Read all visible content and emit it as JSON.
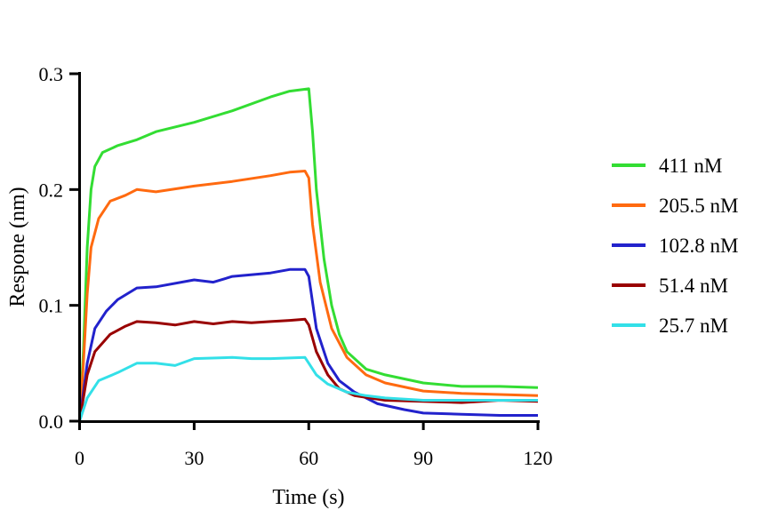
{
  "chart_data": {
    "type": "line",
    "title": "",
    "xlabel": "Time (s)",
    "ylabel": "Respone (nm)",
    "xlim": [
      0,
      120
    ],
    "ylim": [
      0,
      0.3
    ],
    "xticks": [
      "0",
      "30",
      "60",
      "90",
      "120"
    ],
    "yticks": [
      "0.0",
      "0.1",
      "0.2",
      "0.3"
    ],
    "grid": false,
    "legend_position": "right",
    "series": [
      {
        "name": "411 nM",
        "color": "#33dd33",
        "x": [
          0,
          1,
          2,
          3,
          4,
          6,
          10,
          15,
          20,
          30,
          40,
          50,
          55,
          60,
          61,
          62,
          64,
          66,
          68,
          70,
          75,
          80,
          90,
          100,
          110,
          120
        ],
        "y": [
          0,
          0.06,
          0.15,
          0.2,
          0.22,
          0.232,
          0.238,
          0.243,
          0.25,
          0.258,
          0.268,
          0.28,
          0.285,
          0.287,
          0.25,
          0.2,
          0.14,
          0.1,
          0.075,
          0.06,
          0.045,
          0.04,
          0.033,
          0.03,
          0.03,
          0.029
        ]
      },
      {
        "name": "205.5 nM",
        "color": "#ff6a10",
        "x": [
          0,
          1,
          2,
          3,
          5,
          8,
          12,
          15,
          20,
          30,
          40,
          50,
          55,
          59,
          60,
          61,
          63,
          66,
          70,
          75,
          80,
          90,
          100,
          110,
          120
        ],
        "y": [
          0,
          0.05,
          0.11,
          0.15,
          0.175,
          0.19,
          0.195,
          0.2,
          0.198,
          0.203,
          0.207,
          0.212,
          0.215,
          0.216,
          0.21,
          0.17,
          0.12,
          0.08,
          0.055,
          0.04,
          0.033,
          0.026,
          0.024,
          0.023,
          0.022
        ]
      },
      {
        "name": "102.8 nM",
        "color": "#2222cc",
        "x": [
          0,
          2,
          4,
          7,
          10,
          15,
          20,
          30,
          35,
          40,
          50,
          55,
          59,
          60,
          62,
          65,
          68,
          72,
          78,
          85,
          90,
          100,
          110,
          120
        ],
        "y": [
          0,
          0.05,
          0.08,
          0.095,
          0.105,
          0.115,
          0.116,
          0.122,
          0.12,
          0.125,
          0.128,
          0.131,
          0.131,
          0.125,
          0.08,
          0.05,
          0.035,
          0.025,
          0.015,
          0.01,
          0.007,
          0.006,
          0.005,
          0.005
        ]
      },
      {
        "name": "51.4 nM",
        "color": "#990000",
        "x": [
          0,
          2,
          4,
          8,
          12,
          15,
          20,
          25,
          30,
          35,
          40,
          45,
          50,
          55,
          59,
          60,
          62,
          65,
          68,
          72,
          80,
          90,
          100,
          110,
          120
        ],
        "y": [
          0,
          0.04,
          0.06,
          0.075,
          0.082,
          0.086,
          0.085,
          0.083,
          0.086,
          0.084,
          0.086,
          0.085,
          0.086,
          0.087,
          0.088,
          0.083,
          0.06,
          0.04,
          0.028,
          0.022,
          0.018,
          0.017,
          0.016,
          0.018,
          0.017
        ]
      },
      {
        "name": "25.7 nM",
        "color": "#33e0e8",
        "x": [
          0,
          2,
          5,
          10,
          15,
          20,
          25,
          30,
          40,
          45,
          50,
          59,
          60,
          62,
          65,
          70,
          75,
          80,
          90,
          100,
          110,
          120
        ],
        "y": [
          0,
          0.02,
          0.035,
          0.042,
          0.05,
          0.05,
          0.048,
          0.054,
          0.055,
          0.054,
          0.054,
          0.055,
          0.05,
          0.04,
          0.032,
          0.025,
          0.022,
          0.02,
          0.018,
          0.018,
          0.018,
          0.018
        ]
      }
    ]
  }
}
